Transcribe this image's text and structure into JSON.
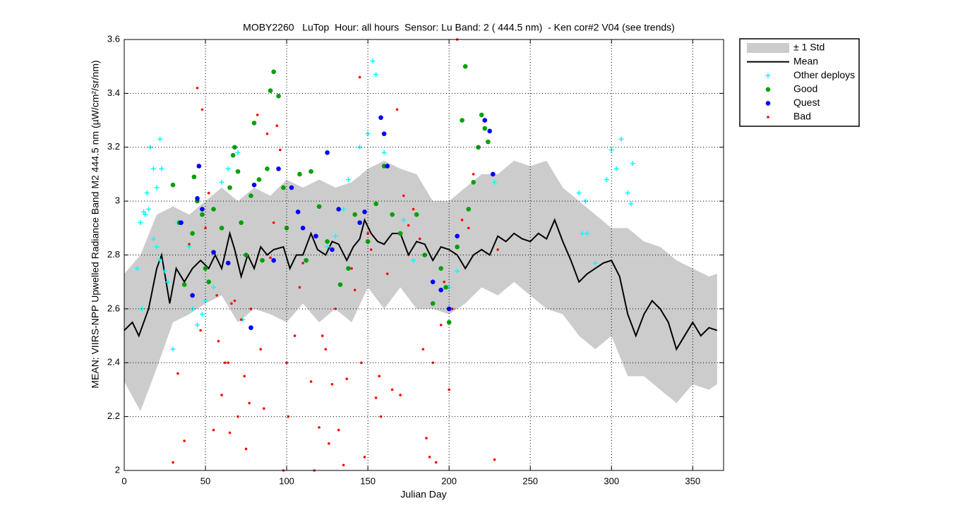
{
  "chart_data": {
    "type": "scatter",
    "title": "MOBY2260   LuTop  Hour: all hours  Sensor: Lu Band: 2 ( 444.5 nm)  - Ken cor#2 V04 (see trends)",
    "xlabel": "Julian Day",
    "ylabel": "MEAN: VIIRS-NPP Upwelled Radiance Band M2 444.5 nm (µW/cm²/sr/nm)",
    "xlim": [
      0,
      369
    ],
    "ylim": [
      2,
      3.6
    ],
    "xticks": [
      0,
      50,
      100,
      150,
      200,
      250,
      300,
      350
    ],
    "yticks": [
      2,
      2.2,
      2.4,
      2.6,
      2.8,
      3,
      3.2,
      3.4,
      3.6
    ],
    "grid": true,
    "legend": "outside-right",
    "series": [
      {
        "name": "± 1 Std",
        "kind": "band",
        "color": "#cccccc",
        "x": [
          0,
          10,
          20,
          30,
          40,
          50,
          60,
          70,
          80,
          90,
          100,
          110,
          120,
          130,
          140,
          150,
          160,
          170,
          180,
          190,
          200,
          210,
          220,
          230,
          240,
          250,
          260,
          270,
          280,
          290,
          300,
          310,
          320,
          330,
          340,
          350,
          360,
          365
        ],
        "upper": [
          2.73,
          2.8,
          2.95,
          2.98,
          2.95,
          3.0,
          3.05,
          3.0,
          3.05,
          3.02,
          3.08,
          3.05,
          3.08,
          3.05,
          3.07,
          3.12,
          3.15,
          3.12,
          3.1,
          3.0,
          3.0,
          3.05,
          3.1,
          3.1,
          3.15,
          3.13,
          3.15,
          3.05,
          3.0,
          2.95,
          2.9,
          2.9,
          2.85,
          2.83,
          2.78,
          2.75,
          2.72,
          2.73
        ],
        "lower": [
          2.33,
          2.22,
          2.38,
          2.55,
          2.58,
          2.62,
          2.65,
          2.55,
          2.6,
          2.58,
          2.55,
          2.62,
          2.55,
          2.6,
          2.55,
          2.68,
          2.6,
          2.68,
          2.6,
          2.6,
          2.58,
          2.62,
          2.68,
          2.65,
          2.7,
          2.65,
          2.6,
          2.58,
          2.5,
          2.45,
          2.5,
          2.35,
          2.35,
          2.3,
          2.25,
          2.32,
          2.3,
          2.32
        ]
      },
      {
        "name": "Mean",
        "kind": "line",
        "color": "#000000",
        "x": [
          0,
          5,
          9,
          15,
          20,
          23,
          28,
          32,
          37,
          42,
          47,
          52,
          56,
          60,
          65,
          68,
          72,
          76,
          80,
          84,
          88,
          92,
          98,
          102,
          106,
          110,
          115,
          119,
          124,
          128,
          132,
          137,
          141,
          145,
          148,
          152,
          156,
          160,
          165,
          170,
          175,
          180,
          185,
          190,
          195,
          200,
          205,
          210,
          215,
          220,
          225,
          230,
          235,
          240,
          245,
          250,
          255,
          260,
          265,
          270,
          275,
          280,
          285,
          290,
          295,
          300,
          305,
          310,
          315,
          320,
          325,
          330,
          335,
          340,
          345,
          350,
          355,
          360,
          365
        ],
        "values": [
          2.52,
          2.55,
          2.5,
          2.6,
          2.75,
          2.8,
          2.62,
          2.75,
          2.7,
          2.75,
          2.78,
          2.75,
          2.8,
          2.75,
          2.88,
          2.82,
          2.72,
          2.8,
          2.75,
          2.83,
          2.8,
          2.82,
          2.83,
          2.75,
          2.8,
          2.8,
          2.88,
          2.82,
          2.8,
          2.85,
          2.84,
          2.78,
          2.83,
          2.86,
          2.93,
          2.88,
          2.85,
          2.84,
          2.88,
          2.88,
          2.8,
          2.85,
          2.84,
          2.78,
          2.83,
          2.82,
          2.8,
          2.75,
          2.8,
          2.82,
          2.8,
          2.87,
          2.85,
          2.88,
          2.86,
          2.85,
          2.88,
          2.86,
          2.93,
          2.85,
          2.78,
          2.7,
          2.73,
          2.75,
          2.77,
          2.78,
          2.72,
          2.58,
          2.5,
          2.58,
          2.63,
          2.6,
          2.55,
          2.45,
          2.5,
          2.55,
          2.5,
          2.53,
          2.52
        ]
      },
      {
        "name": "Other deploys",
        "kind": "points",
        "marker": "+",
        "color": "#00ffff",
        "x": [
          12,
          14,
          16,
          18,
          20,
          22,
          23,
          10,
          13,
          15,
          18,
          20,
          22,
          25,
          27,
          30,
          33,
          40,
          42,
          45,
          48,
          50,
          55,
          60,
          64,
          70,
          73,
          125,
          130,
          135,
          138,
          145,
          150,
          153,
          155,
          160,
          172,
          178,
          200,
          205,
          228,
          280,
          282,
          284,
          285,
          290,
          297,
          300,
          303,
          306,
          310,
          312,
          313,
          8,
          11
        ],
        "values": [
          2.96,
          3.03,
          3.2,
          3.12,
          3.05,
          3.23,
          3.12,
          2.92,
          2.95,
          2.97,
          2.86,
          2.83,
          2.78,
          2.74,
          2.7,
          2.45,
          2.92,
          2.83,
          2.6,
          2.54,
          2.58,
          2.63,
          2.68,
          3.07,
          3.12,
          3.18,
          2.56,
          2.83,
          2.87,
          2.97,
          3.08,
          3.2,
          3.25,
          3.52,
          3.47,
          3.18,
          2.93,
          2.78,
          2.68,
          2.74,
          3.07,
          3.03,
          2.88,
          3.0,
          2.88,
          2.77,
          3.08,
          3.19,
          3.12,
          3.23,
          3.03,
          2.99,
          3.14,
          2.75,
          2.6
        ]
      },
      {
        "name": "Good",
        "kind": "points",
        "marker": "o",
        "color": "#00a000",
        "x": [
          30,
          34,
          37,
          42,
          43,
          45,
          48,
          50,
          52,
          55,
          60,
          65,
          67,
          68,
          70,
          72,
          75,
          78,
          80,
          83,
          85,
          88,
          90,
          92,
          95,
          98,
          100,
          108,
          112,
          115,
          120,
          125,
          133,
          138,
          142,
          150,
          155,
          160,
          165,
          170,
          180,
          185,
          190,
          195,
          198,
          200,
          205,
          208,
          210,
          212,
          215,
          218,
          220,
          222,
          224
        ],
        "values": [
          3.06,
          2.92,
          2.69,
          2.88,
          3.09,
          3.0,
          2.95,
          2.75,
          2.7,
          2.97,
          2.9,
          3.05,
          3.17,
          3.2,
          3.11,
          2.92,
          2.8,
          3.02,
          3.29,
          3.08,
          2.78,
          3.12,
          3.41,
          3.48,
          3.39,
          3.05,
          2.9,
          3.1,
          2.78,
          3.11,
          2.98,
          2.85,
          2.69,
          2.75,
          2.95,
          2.85,
          2.99,
          3.13,
          2.95,
          2.88,
          2.95,
          2.8,
          2.62,
          2.75,
          2.68,
          2.55,
          2.83,
          3.3,
          3.5,
          2.97,
          3.07,
          3.2,
          3.32,
          3.27,
          3.22
        ]
      },
      {
        "name": "Quest",
        "kind": "points",
        "marker": "o",
        "color": "#0000ff",
        "x": [
          35,
          42,
          45,
          46,
          48,
          55,
          64,
          78,
          80,
          92,
          95,
          103,
          107,
          110,
          118,
          125,
          128,
          132,
          145,
          148,
          158,
          160,
          162,
          190,
          195,
          200,
          205,
          222,
          225,
          227
        ],
        "values": [
          2.92,
          2.65,
          3.01,
          3.13,
          2.97,
          2.81,
          2.77,
          2.53,
          3.06,
          2.78,
          3.12,
          3.05,
          2.96,
          2.9,
          2.87,
          3.18,
          2.82,
          2.97,
          2.92,
          2.96,
          3.31,
          3.25,
          3.13,
          2.7,
          2.67,
          2.6,
          2.87,
          3.3,
          3.26,
          3.1
        ]
      },
      {
        "name": "Bad",
        "kind": "points",
        "marker": ".",
        "color": "#ff0000",
        "x": [
          30,
          33,
          37,
          40,
          45,
          47,
          48,
          50,
          52,
          55,
          57,
          58,
          60,
          62,
          64,
          65,
          66,
          68,
          70,
          72,
          74,
          75,
          77,
          78,
          82,
          84,
          86,
          88,
          90,
          92,
          94,
          96,
          98,
          100,
          101,
          105,
          108,
          110,
          115,
          117,
          120,
          122,
          124,
          126,
          128,
          130,
          132,
          135,
          137,
          140,
          142,
          145,
          146,
          148,
          150,
          152,
          155,
          157,
          158,
          162,
          165,
          168,
          170,
          172,
          175,
          178,
          182,
          184,
          186,
          188,
          190,
          192,
          195,
          197,
          200,
          202,
          205,
          208,
          212,
          215,
          228,
          230
        ],
        "values": [
          2.03,
          2.36,
          2.11,
          2.84,
          3.42,
          2.52,
          3.34,
          2.9,
          3.03,
          2.15,
          2.65,
          2.48,
          2.28,
          2.4,
          2.4,
          2.14,
          2.62,
          2.63,
          2.2,
          2.56,
          2.35,
          2.08,
          2.25,
          2.6,
          3.32,
          2.45,
          2.23,
          3.25,
          2.79,
          2.92,
          3.28,
          3.19,
          2.0,
          2.4,
          2.2,
          2.5,
          2.68,
          2.77,
          2.33,
          2.0,
          2.16,
          2.5,
          2.45,
          2.1,
          2.32,
          2.6,
          2.15,
          2.02,
          2.34,
          2.75,
          2.67,
          3.46,
          2.4,
          2.05,
          2.88,
          2.82,
          2.27,
          2.35,
          2.2,
          2.73,
          2.3,
          3.34,
          2.28,
          3.02,
          2.91,
          2.97,
          2.86,
          2.45,
          2.12,
          2.05,
          2.4,
          2.03,
          2.54,
          2.7,
          2.3,
          2.6,
          3.6,
          2.93,
          2.9,
          3.1,
          2.04,
          2.82
        ]
      }
    ]
  }
}
